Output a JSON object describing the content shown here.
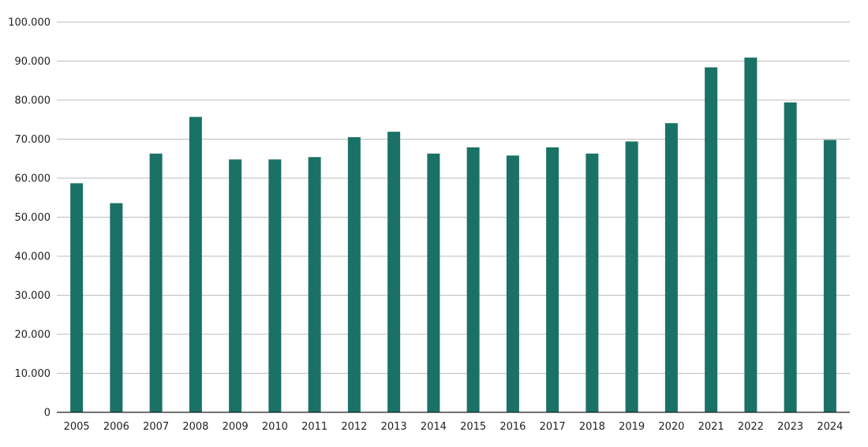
{
  "chart_data": {
    "type": "bar",
    "title": "",
    "xlabel": "",
    "ylabel": "",
    "categories": [
      "2005",
      "2006",
      "2007",
      "2008",
      "2009",
      "2010",
      "2011",
      "2012",
      "2013",
      "2014",
      "2015",
      "2016",
      "2017",
      "2018",
      "2019",
      "2020",
      "2021",
      "2022",
      "2023",
      "2024"
    ],
    "values": [
      58700,
      53600,
      66300,
      75700,
      64800,
      64800,
      65400,
      70500,
      71900,
      66300,
      67900,
      65800,
      67900,
      66300,
      69400,
      74100,
      88400,
      90900,
      79400,
      69800
    ],
    "ylim": [
      0,
      100000
    ],
    "yticks": [
      0,
      10000,
      20000,
      30000,
      40000,
      50000,
      60000,
      70000,
      80000,
      90000,
      100000
    ],
    "ytick_labels": [
      "0",
      "10.000",
      "20.000",
      "30.000",
      "40.000",
      "50.000",
      "60.000",
      "70.000",
      "80.000",
      "90.000",
      "100.000"
    ],
    "grid": true,
    "legend": "none",
    "bar_color": "#1a7266",
    "grid_color": "#bdbdbd",
    "axis_color": "#1f1f1f"
  }
}
